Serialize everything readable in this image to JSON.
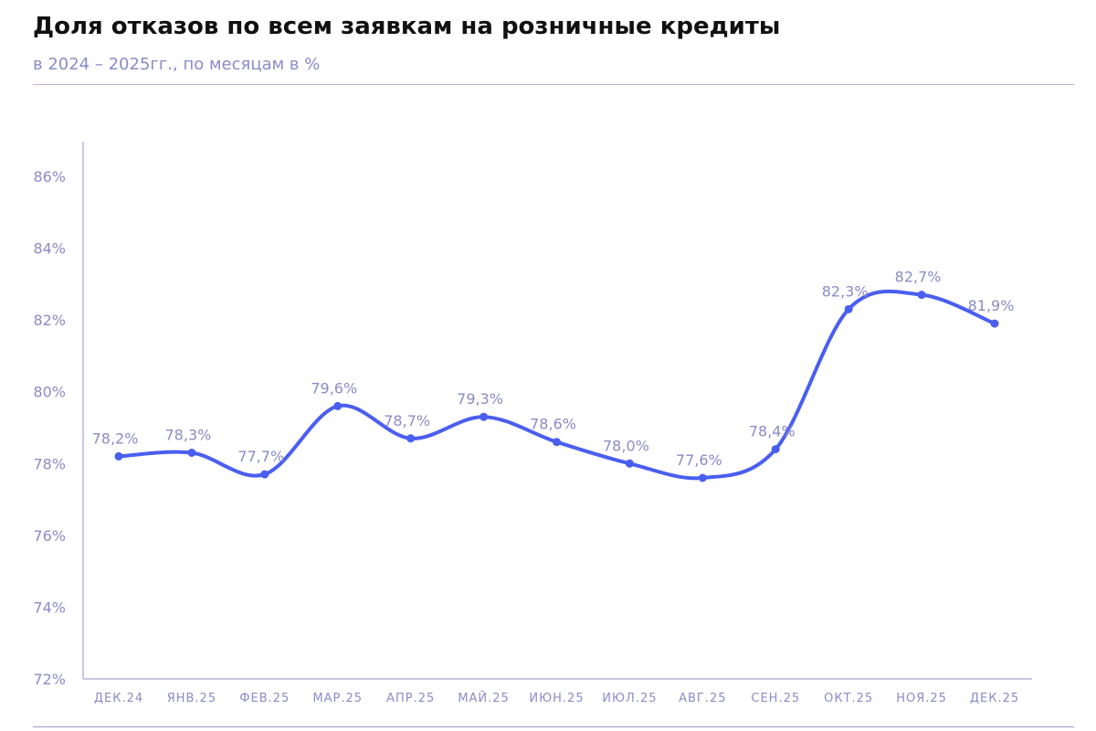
{
  "header": {
    "title": "Доля отказов по всем заявкам на розничные кредиты",
    "subtitle": "в 2024 – 2025гг., по месяцам в %"
  },
  "colors": {
    "line": "#4a5ef0",
    "axis": "#b4b6dc",
    "text": "#8a8cc8"
  },
  "chart_data": {
    "type": "line",
    "title": "Доля отказов по всем заявкам на розничные кредиты",
    "subtitle": "в 2024 – 2025гг., по месяцам в %",
    "xlabel": "",
    "ylabel": "",
    "categories": [
      "ДЕК.24",
      "ЯНВ.25",
      "ФЕВ.25",
      "МАР.25",
      "АПР.25",
      "МАЙ.25",
      "ИЮН.25",
      "ИЮЛ.25",
      "АВГ.25",
      "СЕН.25",
      "ОКТ.25",
      "НОЯ.25",
      "ДЕК.25"
    ],
    "series": [
      {
        "values": [
          78.2,
          78.3,
          77.7,
          79.6,
          78.7,
          79.3,
          78.6,
          78.0,
          77.6,
          78.4,
          82.3,
          82.7,
          81.9
        ],
        "data_labels": [
          "78,2%",
          "78,3%",
          "77,7%",
          "79,6%",
          "78,7%",
          "79,3%",
          "78,6%",
          "78,0%",
          "77,6%",
          "78,4%",
          "82,3%",
          "82,7%",
          "81,9%"
        ]
      }
    ],
    "ylim": [
      72,
      87
    ],
    "yticks": [
      72,
      74,
      76,
      78,
      80,
      82,
      84,
      86
    ],
    "ytick_labels": [
      "72%",
      "74%",
      "76%",
      "78%",
      "80%",
      "82%",
      "84%",
      "86%"
    ],
    "grid": false,
    "legend": "none",
    "smooth": true
  }
}
